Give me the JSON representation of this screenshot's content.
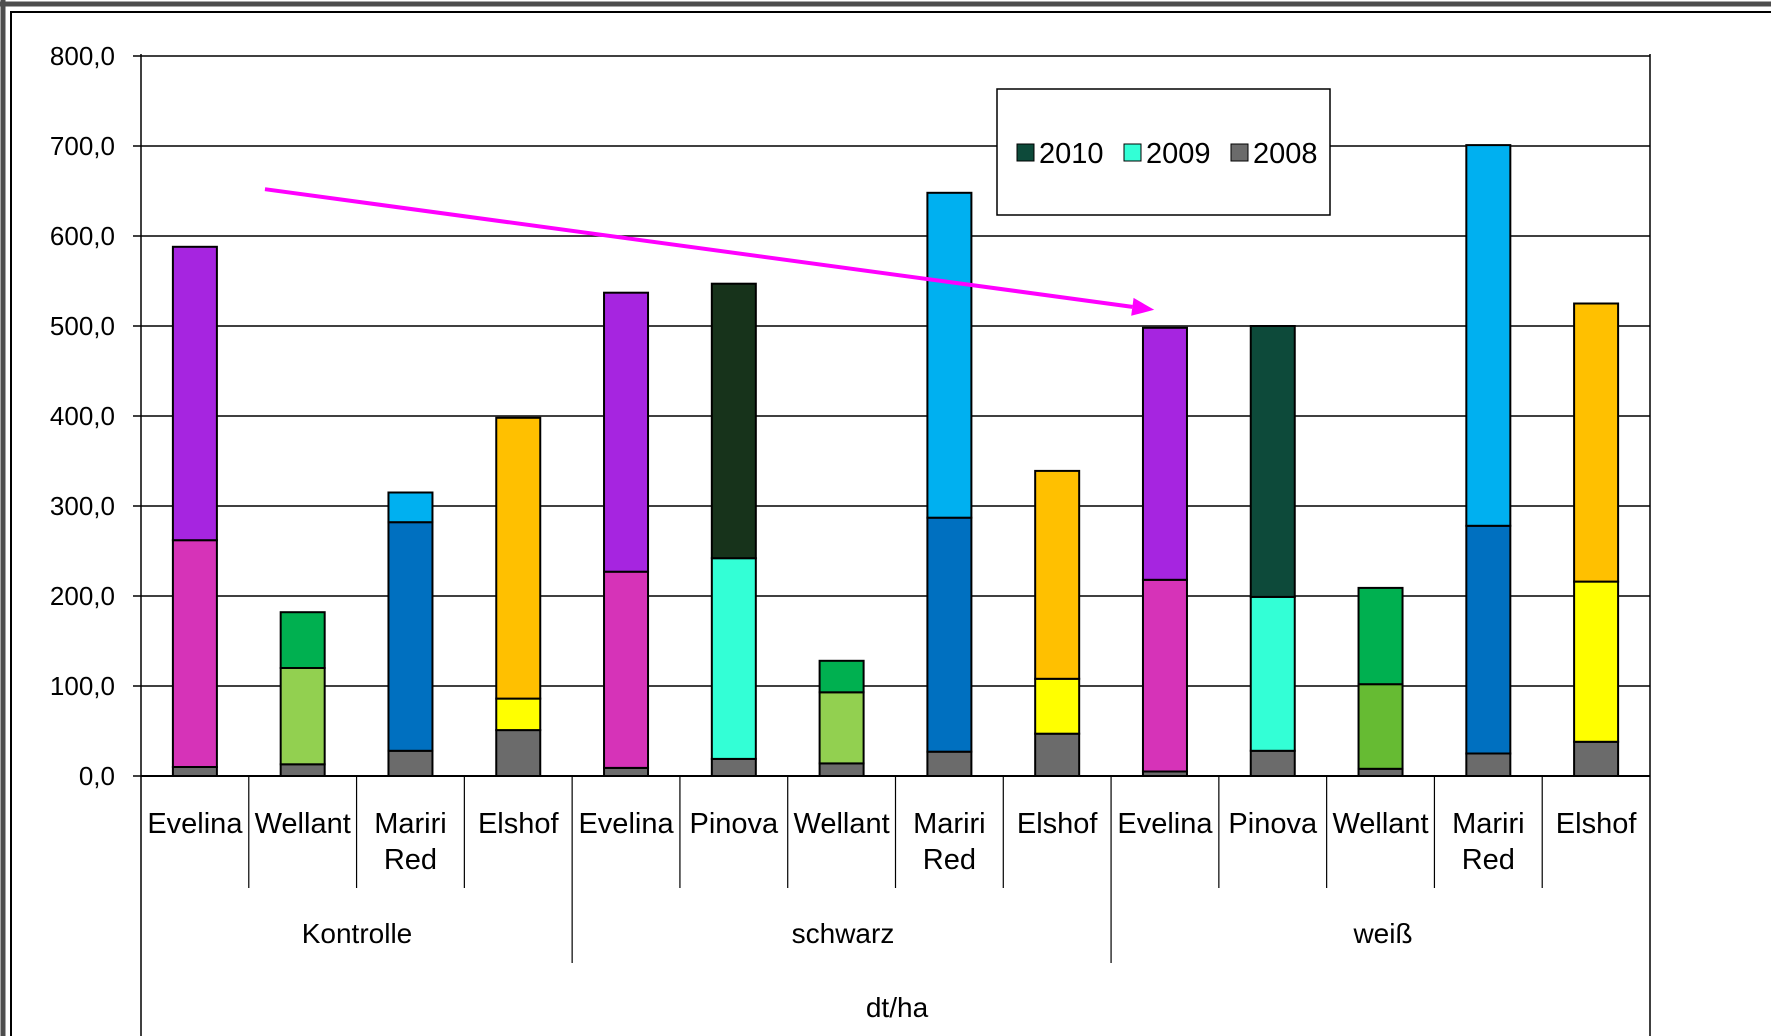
{
  "chart_data": {
    "type": "bar",
    "stacked": true,
    "xlabel": "dt/ha",
    "ylabel": "",
    "ylim": [
      0,
      800
    ],
    "yticks": [
      "0,0",
      "100,0",
      "200,0",
      "300,0",
      "400,0",
      "500,0",
      "600,0",
      "700,0",
      "800,0"
    ],
    "grid": true,
    "legend": {
      "placement": "top-right (inside plot)",
      "entries": [
        {
          "label": "2010",
          "color": "#0d4a3a"
        },
        {
          "label": "2009",
          "color": "#33ffd6"
        },
        {
          "label": "2008",
          "color": "#6b6b6b"
        }
      ]
    },
    "groups": [
      {
        "name": "Kontrolle",
        "categories": [
          "Evelina",
          "Wellant",
          "Mariri Red",
          "Elshof"
        ]
      },
      {
        "name": "schwarz",
        "categories": [
          "Evelina",
          "Pinova",
          "Wellant",
          "Mariri Red",
          "Elshof"
        ]
      },
      {
        "name": "weiß",
        "categories": [
          "Evelina",
          "Pinova",
          "Wellant",
          "Mariri Red",
          "Elshof"
        ]
      }
    ],
    "bars": [
      {
        "group": "Kontrolle",
        "category": "Evelina",
        "segments": [
          {
            "series": "2008",
            "value": 10,
            "color": "#6b6b6b"
          },
          {
            "series": "2009",
            "value": 252,
            "color": "#d633b8"
          },
          {
            "series": "2010",
            "value": 326,
            "color": "#a625e0"
          }
        ]
      },
      {
        "group": "Kontrolle",
        "category": "Wellant",
        "segments": [
          {
            "series": "2008",
            "value": 13,
            "color": "#6b6b6b"
          },
          {
            "series": "2009",
            "value": 107,
            "color": "#92d050"
          },
          {
            "series": "2010",
            "value": 62,
            "color": "#00b050"
          }
        ]
      },
      {
        "group": "Kontrolle",
        "category": "Mariri Red",
        "segments": [
          {
            "series": "2008",
            "value": 28,
            "color": "#6b6b6b"
          },
          {
            "series": "2009",
            "value": 254,
            "color": "#0070c0"
          },
          {
            "series": "2010",
            "value": 33,
            "color": "#00b0f0"
          }
        ]
      },
      {
        "group": "Kontrolle",
        "category": "Elshof",
        "segments": [
          {
            "series": "2008",
            "value": 51,
            "color": "#6b6b6b"
          },
          {
            "series": "2009",
            "value": 35,
            "color": "#ffff00"
          },
          {
            "series": "2010",
            "value": 312,
            "color": "#ffc000"
          }
        ]
      },
      {
        "group": "schwarz",
        "category": "Evelina",
        "segments": [
          {
            "series": "2008",
            "value": 9,
            "color": "#6b6b6b"
          },
          {
            "series": "2009",
            "value": 218,
            "color": "#d633b8"
          },
          {
            "series": "2010",
            "value": 310,
            "color": "#a625e0"
          }
        ]
      },
      {
        "group": "schwarz",
        "category": "Pinova",
        "segments": [
          {
            "series": "2008",
            "value": 19,
            "color": "#6b6b6b"
          },
          {
            "series": "2009",
            "value": 223,
            "color": "#33ffd6"
          },
          {
            "series": "2010",
            "value": 305,
            "color": "#17331b"
          }
        ]
      },
      {
        "group": "schwarz",
        "category": "Wellant",
        "segments": [
          {
            "series": "2008",
            "value": 14,
            "color": "#6b6b6b"
          },
          {
            "series": "2009",
            "value": 79,
            "color": "#92d050"
          },
          {
            "series": "2010",
            "value": 35,
            "color": "#00b050"
          }
        ]
      },
      {
        "group": "schwarz",
        "category": "Mariri Red",
        "segments": [
          {
            "series": "2008",
            "value": 27,
            "color": "#6b6b6b"
          },
          {
            "series": "2009",
            "value": 260,
            "color": "#0070c0"
          },
          {
            "series": "2010",
            "value": 361,
            "color": "#00b0f0"
          }
        ]
      },
      {
        "group": "schwarz",
        "category": "Elshof",
        "segments": [
          {
            "series": "2008",
            "value": 47,
            "color": "#6b6b6b"
          },
          {
            "series": "2009",
            "value": 61,
            "color": "#ffff00"
          },
          {
            "series": "2010",
            "value": 231,
            "color": "#ffc000"
          }
        ]
      },
      {
        "group": "weiß",
        "category": "Evelina",
        "segments": [
          {
            "series": "2008",
            "value": 5,
            "color": "#6b6b6b"
          },
          {
            "series": "2009",
            "value": 213,
            "color": "#d633b8"
          },
          {
            "series": "2010",
            "value": 280,
            "color": "#a625e0"
          }
        ]
      },
      {
        "group": "weiß",
        "category": "Pinova",
        "segments": [
          {
            "series": "2008",
            "value": 28,
            "color": "#6b6b6b"
          },
          {
            "series": "2009",
            "value": 171,
            "color": "#33ffd6"
          },
          {
            "series": "2010",
            "value": 301,
            "color": "#0d4a3a"
          }
        ]
      },
      {
        "group": "weiß",
        "category": "Wellant",
        "segments": [
          {
            "series": "2008",
            "value": 8,
            "color": "#6b6b6b"
          },
          {
            "series": "2009",
            "value": 94,
            "color": "#66bb33"
          },
          {
            "series": "2010",
            "value": 107,
            "color": "#00b050"
          }
        ]
      },
      {
        "group": "weiß",
        "category": "Mariri Red",
        "segments": [
          {
            "series": "2008",
            "value": 25,
            "color": "#6b6b6b"
          },
          {
            "series": "2009",
            "value": 253,
            "color": "#0070c0"
          },
          {
            "series": "2010",
            "value": 423,
            "color": "#00b0f0"
          }
        ]
      },
      {
        "group": "weiß",
        "category": "Elshof",
        "segments": [
          {
            "series": "2008",
            "value": 38,
            "color": "#6b6b6b"
          },
          {
            "series": "2009",
            "value": 178,
            "color": "#ffff00"
          },
          {
            "series": "2010",
            "value": 309,
            "color": "#ffc000"
          }
        ]
      }
    ],
    "annotations": [
      {
        "type": "arrow",
        "color": "#ff00ff",
        "from": {
          "category_index": 1.15,
          "value": 652
        },
        "to": {
          "category_index": 9.4,
          "value": 518
        }
      }
    ]
  }
}
